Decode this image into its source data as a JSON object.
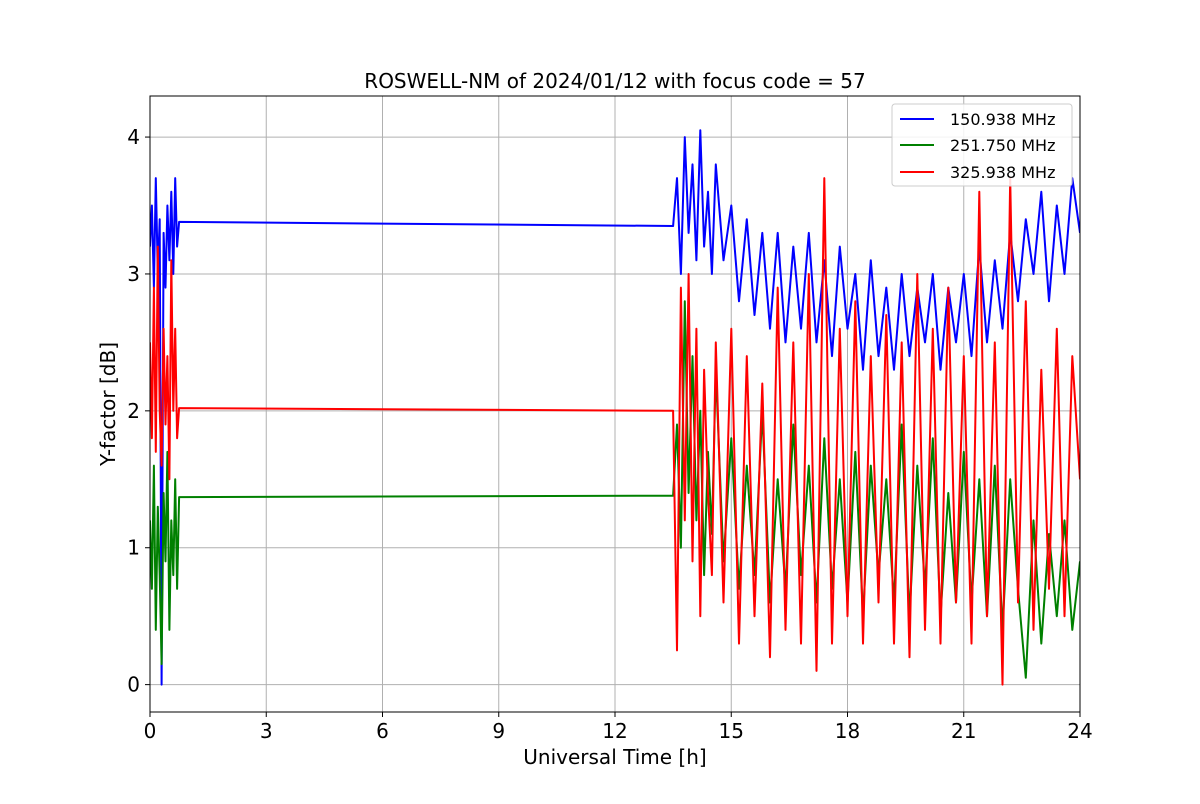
{
  "chart_data": {
    "type": "line",
    "title": "ROSWELL-NM of 2024/01/12 with focus code = 57",
    "xlabel": "Universal Time [h]",
    "ylabel": "Y-factor [dB]",
    "xlim": [
      0,
      24
    ],
    "ylim": [
      -0.2,
      4.3
    ],
    "xticks": [
      0,
      3,
      6,
      9,
      12,
      15,
      18,
      21,
      24
    ],
    "xtick_labels": [
      "0",
      "3",
      "6",
      "9",
      "12",
      "15",
      "18",
      "21",
      "24"
    ],
    "yticks": [
      0,
      1,
      2,
      3,
      4
    ],
    "ytick_labels": [
      "0",
      "1",
      "2",
      "3",
      "4"
    ],
    "grid": true,
    "legend_position": "top-right",
    "series": [
      {
        "name": "150.938 MHz",
        "color": "#0000ff",
        "x": [
          0.0,
          0.05,
          0.1,
          0.15,
          0.2,
          0.25,
          0.3,
          0.35,
          0.4,
          0.45,
          0.5,
          0.55,
          0.6,
          0.65,
          0.7,
          0.75,
          13.5,
          13.6,
          13.7,
          13.8,
          13.9,
          14.0,
          14.1,
          14.2,
          14.3,
          14.4,
          14.5,
          14.6,
          14.8,
          15.0,
          15.2,
          15.4,
          15.6,
          15.8,
          16.0,
          16.2,
          16.4,
          16.6,
          16.8,
          17.0,
          17.2,
          17.4,
          17.6,
          17.8,
          18.0,
          18.2,
          18.4,
          18.6,
          18.8,
          19.0,
          19.2,
          19.4,
          19.6,
          19.8,
          20.0,
          20.2,
          20.4,
          20.6,
          20.8,
          21.0,
          21.2,
          21.4,
          21.6,
          21.8,
          22.0,
          22.2,
          22.4,
          22.6,
          22.8,
          23.0,
          23.2,
          23.4,
          23.6,
          23.8,
          24.0
        ],
        "y": [
          3.2,
          3.5,
          2.9,
          3.7,
          3.0,
          3.4,
          0.0,
          3.3,
          2.9,
          3.5,
          3.1,
          3.6,
          3.0,
          3.7,
          3.2,
          3.38,
          3.35,
          3.7,
          3.0,
          4.0,
          3.3,
          3.8,
          3.1,
          4.05,
          3.2,
          3.6,
          3.0,
          3.8,
          3.1,
          3.5,
          2.8,
          3.4,
          2.7,
          3.3,
          2.6,
          3.3,
          2.5,
          3.2,
          2.6,
          3.3,
          2.5,
          3.1,
          2.4,
          3.2,
          2.6,
          3.0,
          2.3,
          3.1,
          2.4,
          2.9,
          2.3,
          3.0,
          2.4,
          2.9,
          2.5,
          3.0,
          2.3,
          2.9,
          2.5,
          3.0,
          2.4,
          3.2,
          2.5,
          3.1,
          2.6,
          3.3,
          2.8,
          3.4,
          3.0,
          3.6,
          2.8,
          3.5,
          3.0,
          3.7,
          3.3
        ]
      },
      {
        "name": "251.750 MHz",
        "color": "#008000",
        "x": [
          0.0,
          0.05,
          0.1,
          0.15,
          0.2,
          0.25,
          0.3,
          0.35,
          0.4,
          0.45,
          0.5,
          0.55,
          0.6,
          0.65,
          0.7,
          0.75,
          13.5,
          13.6,
          13.7,
          13.8,
          13.9,
          14.0,
          14.1,
          14.2,
          14.3,
          14.4,
          14.5,
          14.6,
          14.8,
          15.0,
          15.2,
          15.4,
          15.6,
          15.8,
          16.0,
          16.2,
          16.4,
          16.6,
          16.8,
          17.0,
          17.2,
          17.4,
          17.6,
          17.8,
          18.0,
          18.2,
          18.4,
          18.6,
          18.8,
          19.0,
          19.2,
          19.4,
          19.6,
          19.8,
          20.0,
          20.2,
          20.4,
          20.6,
          20.8,
          21.0,
          21.2,
          21.4,
          21.6,
          21.8,
          22.0,
          22.2,
          22.4,
          22.6,
          22.8,
          23.0,
          23.2,
          23.4,
          23.6,
          23.8,
          24.0
        ],
        "y": [
          1.2,
          0.7,
          1.6,
          0.4,
          1.3,
          0.8,
          0.15,
          1.4,
          0.9,
          1.7,
          0.4,
          1.2,
          0.8,
          1.5,
          0.7,
          1.37,
          1.38,
          1.9,
          1.0,
          2.8,
          1.4,
          2.4,
          1.2,
          2.0,
          0.8,
          1.7,
          1.1,
          2.3,
          0.9,
          1.8,
          0.7,
          1.6,
          0.8,
          2.0,
          0.6,
          1.5,
          0.7,
          1.9,
          0.8,
          1.6,
          0.6,
          1.8,
          0.7,
          1.5,
          0.6,
          1.7,
          0.5,
          1.6,
          0.8,
          1.5,
          0.6,
          1.9,
          0.5,
          1.6,
          0.7,
          1.8,
          0.5,
          1.4,
          0.6,
          1.7,
          0.6,
          1.5,
          0.5,
          1.6,
          0.4,
          1.5,
          0.7,
          0.05,
          1.2,
          0.3,
          1.1,
          0.5,
          1.2,
          0.4,
          0.9
        ]
      },
      {
        "name": "325.938 MHz",
        "color": "#ff0000",
        "x": [
          0.0,
          0.05,
          0.1,
          0.15,
          0.2,
          0.25,
          0.3,
          0.35,
          0.4,
          0.45,
          0.5,
          0.55,
          0.6,
          0.65,
          0.7,
          0.75,
          13.5,
          13.6,
          13.7,
          13.8,
          13.9,
          14.0,
          14.1,
          14.2,
          14.3,
          14.4,
          14.5,
          14.6,
          14.8,
          15.0,
          15.2,
          15.4,
          15.6,
          15.8,
          16.0,
          16.2,
          16.4,
          16.6,
          16.8,
          17.0,
          17.2,
          17.4,
          17.6,
          17.8,
          18.0,
          18.2,
          18.4,
          18.6,
          18.8,
          19.0,
          19.2,
          19.4,
          19.6,
          19.8,
          20.0,
          20.2,
          20.4,
          20.6,
          20.8,
          21.0,
          21.2,
          21.4,
          21.6,
          21.8,
          22.0,
          22.2,
          22.4,
          22.6,
          22.8,
          23.0,
          23.2,
          23.4,
          23.6,
          23.8,
          24.0
        ],
        "y": [
          2.5,
          1.8,
          2.9,
          1.7,
          3.2,
          2.0,
          1.6,
          2.6,
          1.9,
          2.4,
          1.5,
          3.1,
          2.0,
          2.6,
          1.8,
          2.02,
          2.0,
          0.25,
          2.9,
          1.2,
          3.0,
          0.9,
          2.6,
          0.5,
          2.3,
          1.4,
          0.8,
          2.5,
          0.6,
          2.6,
          0.3,
          2.4,
          0.5,
          2.2,
          0.2,
          2.9,
          0.4,
          2.5,
          0.3,
          3.0,
          0.1,
          3.7,
          0.3,
          2.6,
          0.5,
          2.8,
          0.3,
          2.4,
          0.6,
          2.7,
          0.3,
          2.5,
          0.2,
          3.0,
          0.4,
          2.6,
          0.3,
          2.9,
          0.6,
          2.4,
          0.3,
          3.6,
          0.5,
          2.5,
          0.0,
          3.7,
          0.6,
          2.8,
          0.4,
          2.3,
          0.7,
          2.6,
          0.5,
          2.4,
          1.5
        ]
      }
    ]
  }
}
